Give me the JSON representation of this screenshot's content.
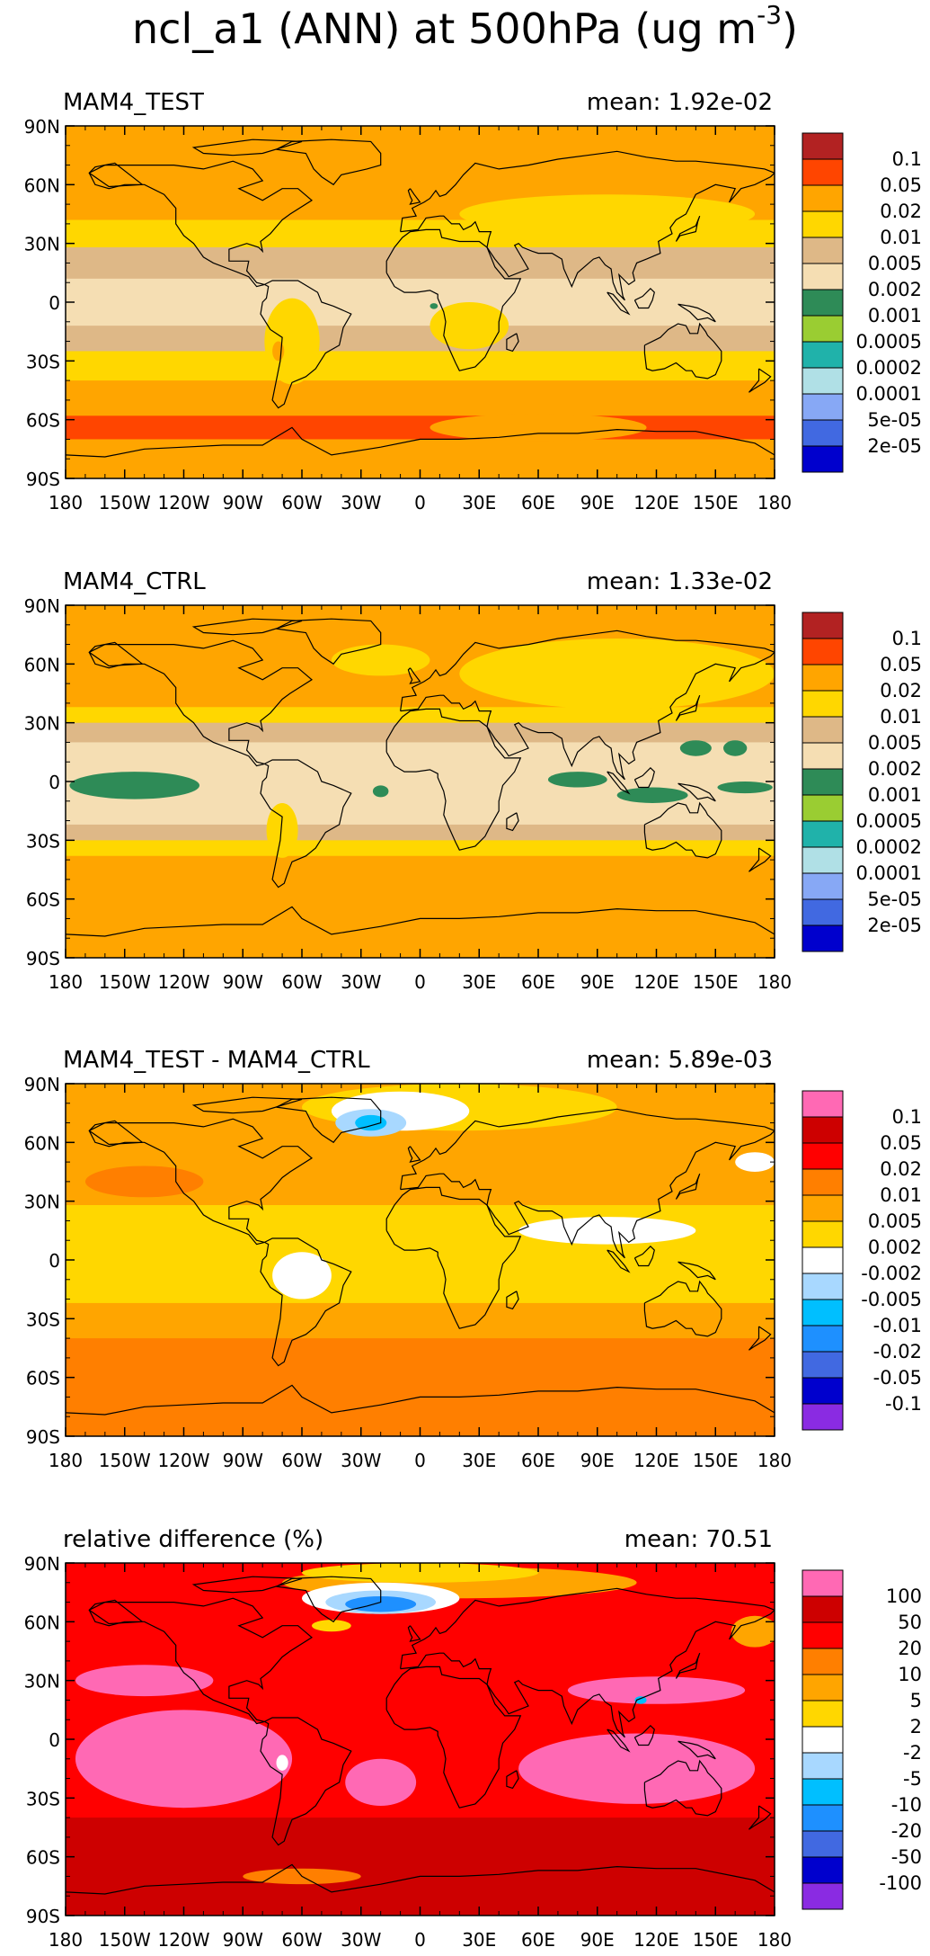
{
  "figure": {
    "title_main": "ncl_a1 (ANN) at 500hPa (ug m",
    "title_sup": "-3",
    "title_close": ")"
  },
  "axes": {
    "lat_labels": [
      "90N",
      "60N",
      "30N",
      "0",
      "30S",
      "60S",
      "90S"
    ],
    "lon_labels": [
      "180",
      "150W",
      "120W",
      "90W",
      "60W",
      "30W",
      "0",
      "30E",
      "60E",
      "90E",
      "120E",
      "150E",
      "180"
    ]
  },
  "colors": {
    "dark_red": "#b22222",
    "orange_red": "#ff4500",
    "orange": "#ffa500",
    "gold": "#ffd700",
    "tan": "#deb887",
    "wheat": "#f5deb3",
    "sea_green": "#2e8b57",
    "yellow_green": "#9acd32",
    "light_sea_green": "#20b2aa",
    "powder_blue": "#b0e0e6",
    "cornflower": "#87a8f5",
    "royal_blue": "#4169e1",
    "medium_blue": "#0000cd",
    "hot_pink": "#ff69b4",
    "firebrick": "#cd0000",
    "red": "#ff0000",
    "dark_orange": "#ff7f00",
    "white": "#ffffff",
    "light_sky": "#a8d8ff",
    "deep_sky": "#00bfff",
    "dodger": "#1e90ff",
    "blue": "#0000ff",
    "purple": "#8a2be2"
  },
  "panels": [
    {
      "id": "test",
      "name": "MAM4_TEST",
      "mean": "mean: 1.92e-02",
      "legend": {
        "colors": [
          "#b22222",
          "#ff4500",
          "#ffa500",
          "#ffd700",
          "#deb887",
          "#f5deb3",
          "#2e8b57",
          "#9acd32",
          "#20b2aa",
          "#b0e0e6",
          "#87a8f5",
          "#4169e1",
          "#0000cd"
        ],
        "labels": [
          "0.1",
          "0.05",
          "0.02",
          "0.01",
          "0.005",
          "0.002",
          "0.001",
          "0.0005",
          "0.0002",
          "0.0001",
          "5e-05",
          "2e-05"
        ]
      },
      "background": "#ffa500",
      "shapes": [
        {
          "kind": "band",
          "color": "#ffd700",
          "lat1": 42,
          "lat2": -40
        },
        {
          "kind": "band",
          "color": "#deb887",
          "lat1": 28,
          "lat2": -25
        },
        {
          "kind": "band",
          "color": "#f5deb3",
          "lat1": 12,
          "lat2": -12
        },
        {
          "kind": "ellipse",
          "color": "#ffd700",
          "lon": 95,
          "lat": 45,
          "rlon": 75,
          "rlat": 10
        },
        {
          "kind": "ellipse",
          "color": "#ffd700",
          "lon": -65,
          "lat": -20,
          "rlon": 14,
          "rlat": 22
        },
        {
          "kind": "ellipse",
          "color": "#ffd700",
          "lon": 25,
          "lat": -12,
          "rlon": 20,
          "rlat": 12
        },
        {
          "kind": "ellipse",
          "color": "#ffa500",
          "lon": -72,
          "lat": -25,
          "rlon": 3,
          "rlat": 5
        },
        {
          "kind": "band",
          "color": "#ff4500",
          "lat1": -58,
          "lat2": -70
        },
        {
          "kind": "ellipse",
          "color": "#ffa500",
          "lon": 60,
          "lat": -64,
          "rlon": 55,
          "rlat": 7
        },
        {
          "kind": "ellipse",
          "color": "#2e8b57",
          "lon": 7,
          "lat": -2,
          "rlon": 2,
          "rlat": 1.5
        }
      ]
    },
    {
      "id": "ctrl",
      "name": "MAM4_CTRL",
      "mean": "mean: 1.33e-02",
      "legend": {
        "colors": [
          "#b22222",
          "#ff4500",
          "#ffa500",
          "#ffd700",
          "#deb887",
          "#f5deb3",
          "#2e8b57",
          "#9acd32",
          "#20b2aa",
          "#b0e0e6",
          "#87a8f5",
          "#4169e1",
          "#0000cd"
        ],
        "labels": [
          "0.1",
          "0.05",
          "0.02",
          "0.01",
          "0.005",
          "0.002",
          "0.001",
          "0.0005",
          "0.0002",
          "0.0001",
          "5e-05",
          "2e-05"
        ]
      },
      "background": "#ffa500",
      "shapes": [
        {
          "kind": "band",
          "color": "#ffd700",
          "lat1": 38,
          "lat2": -38
        },
        {
          "kind": "ellipse",
          "color": "#ffd700",
          "lon": 100,
          "lat": 55,
          "rlon": 80,
          "rlat": 18
        },
        {
          "kind": "ellipse",
          "color": "#ffd700",
          "lon": -20,
          "lat": 62,
          "rlon": 25,
          "rlat": 8
        },
        {
          "kind": "band",
          "color": "#deb887",
          "lat1": 30,
          "lat2": -30
        },
        {
          "kind": "band",
          "color": "#f5deb3",
          "lat1": 20,
          "lat2": -22
        },
        {
          "kind": "ellipse",
          "color": "#ffd700",
          "lon": -70,
          "lat": -25,
          "rlon": 8,
          "rlat": 14
        },
        {
          "kind": "ellipse",
          "color": "#2e8b57",
          "lon": -145,
          "lat": -2,
          "rlon": 33,
          "rlat": 7
        },
        {
          "kind": "ellipse",
          "color": "#2e8b57",
          "lon": 80,
          "lat": 1,
          "rlon": 15,
          "rlat": 4
        },
        {
          "kind": "ellipse",
          "color": "#2e8b57",
          "lon": 118,
          "lat": -7,
          "rlon": 18,
          "rlat": 4
        },
        {
          "kind": "ellipse",
          "color": "#2e8b57",
          "lon": 165,
          "lat": -3,
          "rlon": 14,
          "rlat": 3
        },
        {
          "kind": "ellipse",
          "color": "#2e8b57",
          "lon": 140,
          "lat": 17,
          "rlon": 8,
          "rlat": 4
        },
        {
          "kind": "ellipse",
          "color": "#2e8b57",
          "lon": 160,
          "lat": 17,
          "rlon": 6,
          "rlat": 4
        },
        {
          "kind": "ellipse",
          "color": "#2e8b57",
          "lon": -20,
          "lat": -5,
          "rlon": 4,
          "rlat": 3
        }
      ]
    },
    {
      "id": "diff",
      "name": "MAM4_TEST - MAM4_CTRL",
      "mean": "mean: 5.89e-03",
      "legend": {
        "colors": [
          "#ff69b4",
          "#cd0000",
          "#ff0000",
          "#ff7f00",
          "#ffa500",
          "#ffd700",
          "#ffffff",
          "#a8d8ff",
          "#00bfff",
          "#1e90ff",
          "#4169e1",
          "#0000cd",
          "#8a2be2"
        ],
        "labels": [
          "0.1",
          "0.05",
          "0.02",
          "0.01",
          "0.005",
          "0.002",
          "-0.002",
          "-0.005",
          "-0.01",
          "-0.02",
          "-0.05",
          "-0.1"
        ]
      },
      "background": "#ffa500",
      "shapes": [
        {
          "kind": "band",
          "color": "#ffd700",
          "lat1": 28,
          "lat2": -22
        },
        {
          "kind": "band",
          "color": "#ff7f00",
          "lat1": -40,
          "lat2": -90
        },
        {
          "kind": "ellipse",
          "color": "#ffd700",
          "lon": 20,
          "lat": 78,
          "rlon": 80,
          "rlat": 12
        },
        {
          "kind": "ellipse",
          "color": "#ffffff",
          "lon": -10,
          "lat": 76,
          "rlon": 35,
          "rlat": 10
        },
        {
          "kind": "ellipse",
          "color": "#a8d8ff",
          "lon": -25,
          "lat": 70,
          "rlon": 18,
          "rlat": 7
        },
        {
          "kind": "ellipse",
          "color": "#00bfff",
          "lon": -25,
          "lat": 70,
          "rlon": 8,
          "rlat": 4
        },
        {
          "kind": "ellipse",
          "color": "#ffffff",
          "lon": 95,
          "lat": 15,
          "rlon": 45,
          "rlat": 7
        },
        {
          "kind": "ellipse",
          "color": "#ffffff",
          "lon": -60,
          "lat": -8,
          "rlon": 15,
          "rlat": 12
        },
        {
          "kind": "ellipse",
          "color": "#ffffff",
          "lon": 170,
          "lat": 50,
          "rlon": 10,
          "rlat": 5
        },
        {
          "kind": "ellipse",
          "color": "#ff7f00",
          "lon": -140,
          "lat": 40,
          "rlon": 30,
          "rlat": 8
        }
      ]
    },
    {
      "id": "rel",
      "name": "relative difference (%)",
      "mean": "mean: 70.51",
      "legend": {
        "colors": [
          "#ff69b4",
          "#cd0000",
          "#ff0000",
          "#ff7f00",
          "#ffa500",
          "#ffd700",
          "#ffffff",
          "#a8d8ff",
          "#00bfff",
          "#1e90ff",
          "#4169e1",
          "#0000cd",
          "#8a2be2"
        ],
        "labels": [
          "100",
          "50",
          "20",
          "10",
          "5",
          "2",
          "-2",
          "-5",
          "-10",
          "-20",
          "-50",
          "-100"
        ]
      },
      "background": "#ff0000",
      "shapes": [
        {
          "kind": "band",
          "color": "#cd0000",
          "lat1": -40,
          "lat2": -90
        },
        {
          "kind": "ellipse",
          "color": "#ff69b4",
          "lon": -120,
          "lat": -10,
          "rlon": 55,
          "rlat": 25
        },
        {
          "kind": "ellipse",
          "color": "#ff69b4",
          "lon": 110,
          "lat": -15,
          "rlon": 60,
          "rlat": 18
        },
        {
          "kind": "ellipse",
          "color": "#ff69b4",
          "lon": -20,
          "lat": -22,
          "rlon": 18,
          "rlat": 12
        },
        {
          "kind": "ellipse",
          "color": "#ff69b4",
          "lon": -140,
          "lat": 30,
          "rlon": 35,
          "rlat": 8
        },
        {
          "kind": "ellipse",
          "color": "#ff69b4",
          "lon": 120,
          "lat": 25,
          "rlon": 45,
          "rlat": 7
        },
        {
          "kind": "ellipse",
          "color": "#ffa500",
          "lon": 20,
          "lat": 80,
          "rlon": 90,
          "rlat": 8
        },
        {
          "kind": "ellipse",
          "color": "#ffd700",
          "lon": 0,
          "lat": 85,
          "rlon": 60,
          "rlat": 5
        },
        {
          "kind": "ellipse",
          "color": "#ffffff",
          "lon": -20,
          "lat": 72,
          "rlon": 40,
          "rlat": 8
        },
        {
          "kind": "ellipse",
          "color": "#a8d8ff",
          "lon": -20,
          "lat": 70,
          "rlon": 28,
          "rlat": 6
        },
        {
          "kind": "ellipse",
          "color": "#1e90ff",
          "lon": -20,
          "lat": 69,
          "rlon": 18,
          "rlat": 4
        },
        {
          "kind": "ellipse",
          "color": "#ffd700",
          "lon": -45,
          "lat": 58,
          "rlon": 10,
          "rlat": 3
        },
        {
          "kind": "ellipse",
          "color": "#ff7f00",
          "lon": -60,
          "lat": -70,
          "rlon": 30,
          "rlat": 4
        },
        {
          "kind": "ellipse",
          "color": "#ffa500",
          "lon": 170,
          "lat": 55,
          "rlon": 12,
          "rlat": 8
        },
        {
          "kind": "ellipse",
          "color": "#ffffff",
          "lon": -70,
          "lat": -12,
          "rlon": 3,
          "rlat": 4
        },
        {
          "kind": "ellipse",
          "color": "#00bfff",
          "lon": 112,
          "lat": 20,
          "rlon": 3,
          "rlat": 2
        }
      ]
    }
  ]
}
